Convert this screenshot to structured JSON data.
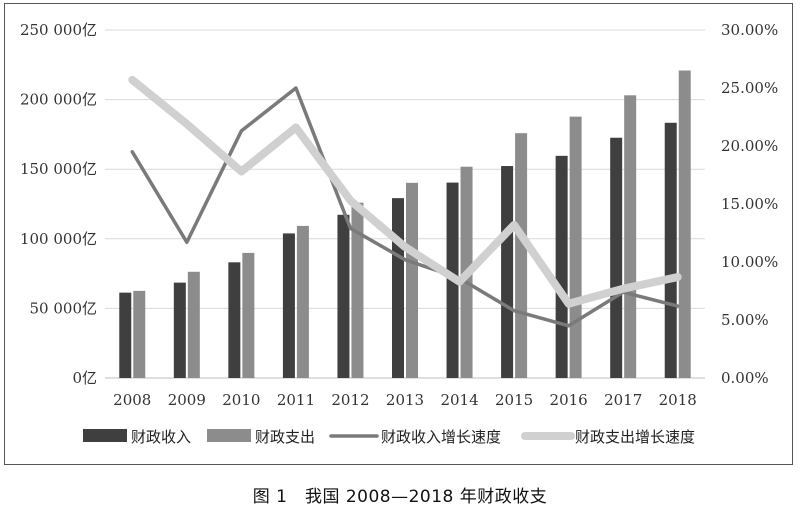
{
  "caption": "图 1　我国 2008—2018 年财政收支",
  "chart_data": {
    "type": "bar",
    "categories": [
      "2008",
      "2009",
      "2010",
      "2011",
      "2012",
      "2013",
      "2014",
      "2015",
      "2016",
      "2017",
      "2018"
    ],
    "left_axis": {
      "ylim": [
        0,
        250000
      ],
      "ticks": [
        0,
        50000,
        100000,
        150000,
        200000,
        250000
      ],
      "tick_labels": [
        "0亿",
        "50 000亿",
        "100 000亿",
        "150 000亿",
        "200 000亿",
        "250 000亿"
      ]
    },
    "right_axis": {
      "ylim": [
        0,
        30
      ],
      "ticks": [
        0,
        5,
        10,
        15,
        20,
        25,
        30
      ],
      "tick_labels": [
        "0.00%",
        "5.00%",
        "10.00%",
        "15.00%",
        "20.00%",
        "25.00%",
        "30.00%"
      ]
    },
    "series": [
      {
        "name": "财政收入",
        "kind": "bar",
        "axis": "left",
        "color": "#3f3f3f",
        "values": [
          61330,
          68518,
          83102,
          103874,
          117254,
          129210,
          140370,
          152269,
          159605,
          172593,
          183360
        ]
      },
      {
        "name": "财政支出",
        "kind": "bar",
        "axis": "left",
        "color": "#8c8c8c",
        "values": [
          62593,
          76300,
          89874,
          109248,
          125953,
          140212,
          151786,
          175878,
          187755,
          203085,
          220906
        ]
      },
      {
        "name": "财政收入增长速度",
        "kind": "line",
        "axis": "right",
        "color": "#7a7a7a",
        "values": [
          19.5,
          11.7,
          21.3,
          25.0,
          12.9,
          10.2,
          8.6,
          5.8,
          4.5,
          7.4,
          6.2
        ]
      },
      {
        "name": "财政支出增长速度",
        "kind": "line",
        "axis": "right",
        "color": "#d0d0d0",
        "values": [
          25.7,
          21.9,
          17.8,
          21.6,
          15.3,
          11.3,
          8.3,
          13.2,
          6.4,
          7.7,
          8.7
        ]
      }
    ],
    "legend": "bottom"
  }
}
